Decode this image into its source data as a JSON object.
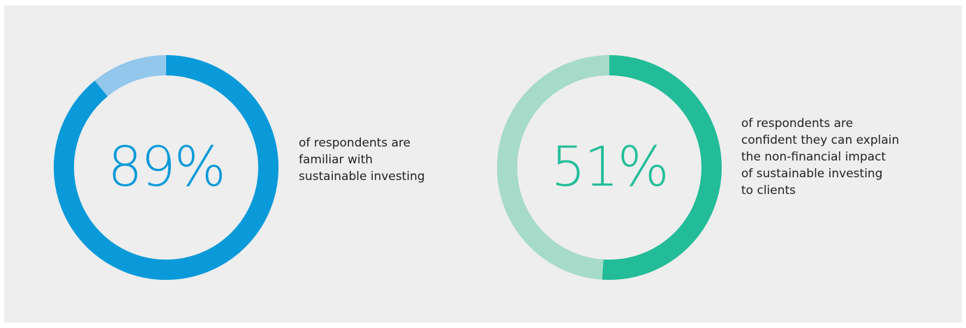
{
  "chart_data": [
    {
      "type": "donut",
      "value": 89,
      "label": "89%",
      "description_lines": [
        "of respondents are",
        "familiar with",
        "sustainable investing"
      ],
      "colors": {
        "fill": "#0a9ad9",
        "track": "#93c7ec",
        "text": "#0a9ad9"
      }
    },
    {
      "type": "donut",
      "value": 51,
      "label": "51%",
      "description_lines": [
        "of respondents are",
        "confident they can explain",
        "the non-financial impact",
        "of sustainable investing",
        "to clients"
      ],
      "colors": {
        "fill": "#22bd98",
        "track": "#a6dbc9",
        "text": "#22bd98"
      }
    }
  ]
}
